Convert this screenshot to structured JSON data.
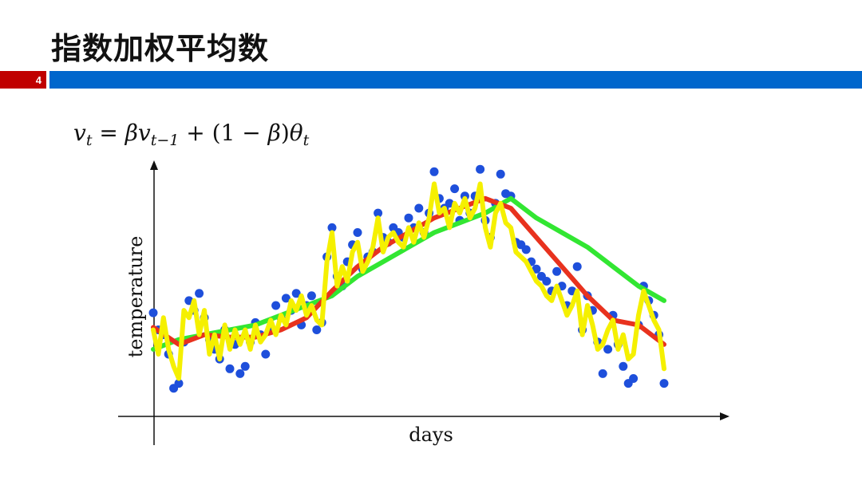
{
  "slide": {
    "title": "指数加权平均数",
    "page_number": "4",
    "formula": {
      "v": "v",
      "t": "t",
      "eq": " = ",
      "beta": "β",
      "tm1": "t−1",
      "plus": " + (1 − ",
      "close": ")",
      "theta": "θ"
    },
    "colors": {
      "title_bar": "#0066cc",
      "page_badge": "#c00000"
    }
  },
  "chart_data": {
    "type": "scatter",
    "xlabel": "days",
    "ylabel": "temperature",
    "xlim": [
      0,
      100
    ],
    "ylim": [
      0,
      100
    ],
    "grid": false,
    "legend": "none",
    "series": [
      {
        "kind": "scatter",
        "color": "#1e4fdb",
        "x": [
          0,
          1,
          2,
          3,
          4,
          5,
          6,
          7,
          8,
          9,
          10,
          11,
          12,
          13,
          14,
          15,
          16,
          17,
          18,
          19,
          20,
          21,
          22,
          23,
          24,
          25,
          26,
          27,
          28,
          29,
          30,
          31,
          32,
          33,
          34,
          35,
          36,
          37,
          38,
          39,
          40,
          41,
          42,
          43,
          44,
          45,
          46,
          47,
          48,
          49,
          50,
          51,
          52,
          53,
          54,
          55,
          56,
          57,
          58,
          59,
          60,
          61,
          62,
          63,
          64,
          65,
          66,
          67,
          68,
          69,
          70,
          71,
          72,
          73,
          74,
          75,
          76,
          77,
          78,
          79,
          80,
          81,
          82,
          83,
          84,
          85,
          86,
          87,
          88,
          89,
          90,
          91,
          92,
          93,
          94,
          95,
          96,
          97,
          98,
          99,
          100
        ],
        "y": [
          37,
          30,
          28,
          20,
          6,
          8,
          25,
          42,
          38,
          45,
          35,
          26,
          22,
          18,
          30,
          14,
          24,
          12,
          15,
          25,
          33,
          28,
          20,
          30,
          40,
          35,
          43,
          38,
          45,
          32,
          40,
          44,
          30,
          33,
          60,
          72,
          52,
          48,
          58,
          65,
          70,
          55,
          60,
          62,
          78,
          68,
          66,
          72,
          70,
          68,
          76,
          72,
          80,
          70,
          78,
          95,
          84,
          80,
          82,
          88,
          75,
          85,
          78,
          85,
          96,
          75,
          68,
          82,
          94,
          86,
          85,
          66,
          65,
          63,
          58,
          55,
          52,
          50,
          46,
          54,
          48,
          40,
          46,
          56,
          30,
          44,
          38,
          25,
          12,
          22,
          36,
          24,
          15,
          8,
          10,
          32,
          48,
          42,
          36,
          28,
          8
        ]
      },
      {
        "kind": "line",
        "color": "#f5f000",
        "x": [
          0,
          1,
          2,
          3,
          4,
          5,
          6,
          7,
          8,
          9,
          10,
          11,
          12,
          13,
          14,
          15,
          16,
          17,
          18,
          19,
          20,
          21,
          22,
          23,
          24,
          25,
          26,
          27,
          28,
          29,
          30,
          31,
          32,
          33,
          34,
          35,
          36,
          37,
          38,
          39,
          40,
          41,
          42,
          43,
          44,
          45,
          46,
          47,
          48,
          49,
          50,
          51,
          52,
          53,
          54,
          55,
          56,
          57,
          58,
          59,
          60,
          61,
          62,
          63,
          64,
          65,
          66,
          67,
          68,
          69,
          70,
          71,
          72,
          73,
          74,
          75,
          76,
          77,
          78,
          79,
          80,
          81,
          82,
          83,
          84,
          85,
          86,
          87,
          88,
          89,
          90,
          91,
          92,
          93,
          94,
          95,
          96,
          97,
          98,
          99,
          100
        ],
        "y": [
          30,
          20,
          35,
          22,
          15,
          10,
          38,
          35,
          42,
          28,
          38,
          20,
          28,
          18,
          32,
          22,
          30,
          24,
          30,
          22,
          32,
          25,
          28,
          34,
          28,
          36,
          32,
          42,
          38,
          44,
          36,
          40,
          34,
          32,
          58,
          70,
          48,
          56,
          50,
          62,
          66,
          54,
          58,
          64,
          76,
          62,
          68,
          70,
          66,
          64,
          72,
          66,
          74,
          68,
          76,
          90,
          78,
          80,
          72,
          82,
          78,
          84,
          76,
          80,
          90,
          72,
          64,
          78,
          82,
          74,
          72,
          62,
          60,
          58,
          54,
          50,
          48,
          44,
          42,
          48,
          42,
          36,
          40,
          46,
          28,
          40,
          32,
          22,
          24,
          30,
          34,
          22,
          28,
          18,
          20,
          36,
          46,
          40,
          34,
          30,
          14
        ]
      },
      {
        "kind": "line",
        "color": "#e8321e",
        "x": [
          0,
          5,
          10,
          15,
          20,
          25,
          30,
          35,
          40,
          45,
          50,
          55,
          60,
          65,
          70,
          75,
          80,
          85,
          90,
          95,
          100
        ],
        "y": [
          31,
          24,
          28,
          27,
          27,
          30,
          35,
          46,
          56,
          64,
          70,
          76,
          80,
          84,
          80,
          68,
          56,
          44,
          34,
          32,
          24
        ]
      },
      {
        "kind": "line",
        "color": "#32e632",
        "x": [
          0,
          5,
          10,
          15,
          20,
          25,
          30,
          35,
          40,
          45,
          50,
          55,
          60,
          65,
          70,
          75,
          80,
          85,
          90,
          95,
          100
        ],
        "y": [
          22,
          26,
          28,
          30,
          32,
          36,
          40,
          44,
          52,
          58,
          64,
          70,
          74,
          78,
          84,
          76,
          70,
          64,
          56,
          48,
          42
        ]
      }
    ]
  }
}
